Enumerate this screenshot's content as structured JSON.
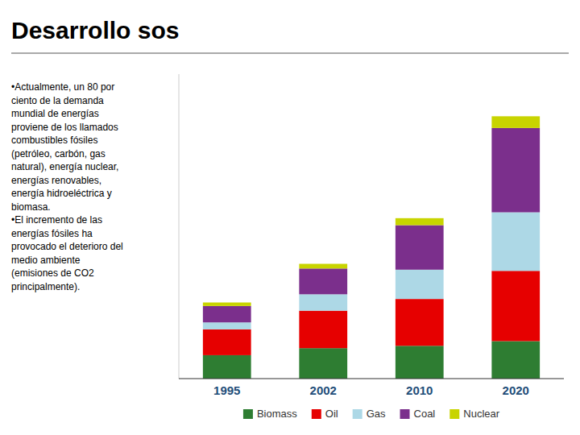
{
  "chart_data": {
    "type": "bar",
    "stacked": true,
    "title": "Desarrollo sos",
    "annotations": [
      "•Actualmente, un 80 por\nciento de la demanda\nmundial de energías\nproviene de los llamados\ncombustibles fósiles\n(petróleo, carbón, gas\nnatural), energía nuclear,\nenergías renovables,\nenergía hidroeléctrica y\nbiomasa.\n•El incremento de las\nenergías fósiles ha\nprovocado el deterioro del\nmedio ambiente\n(emisiones de CO2\nprincipalmente)."
    ],
    "categories": [
      "1995",
      "2002",
      "2010",
      "2020"
    ],
    "series": [
      {
        "name": "Biomass",
        "color": "#2e7d32",
        "values": [
          20,
          26,
          28,
          32
        ]
      },
      {
        "name": "Oil",
        "color": "#e60000",
        "values": [
          22,
          32,
          40,
          60
        ]
      },
      {
        "name": "Gas",
        "color": "#add8e6",
        "values": [
          6,
          14,
          25,
          50
        ]
      },
      {
        "name": "Coal",
        "color": "#7b2f8c",
        "values": [
          14,
          22,
          38,
          72
        ]
      },
      {
        "name": "Nuclear",
        "color": "#c8d400",
        "values": [
          3,
          4,
          6,
          10
        ]
      }
    ],
    "ylim": [
      0,
      260
    ],
    "tick_labels": "x",
    "grid": false,
    "legend": "bottom"
  }
}
